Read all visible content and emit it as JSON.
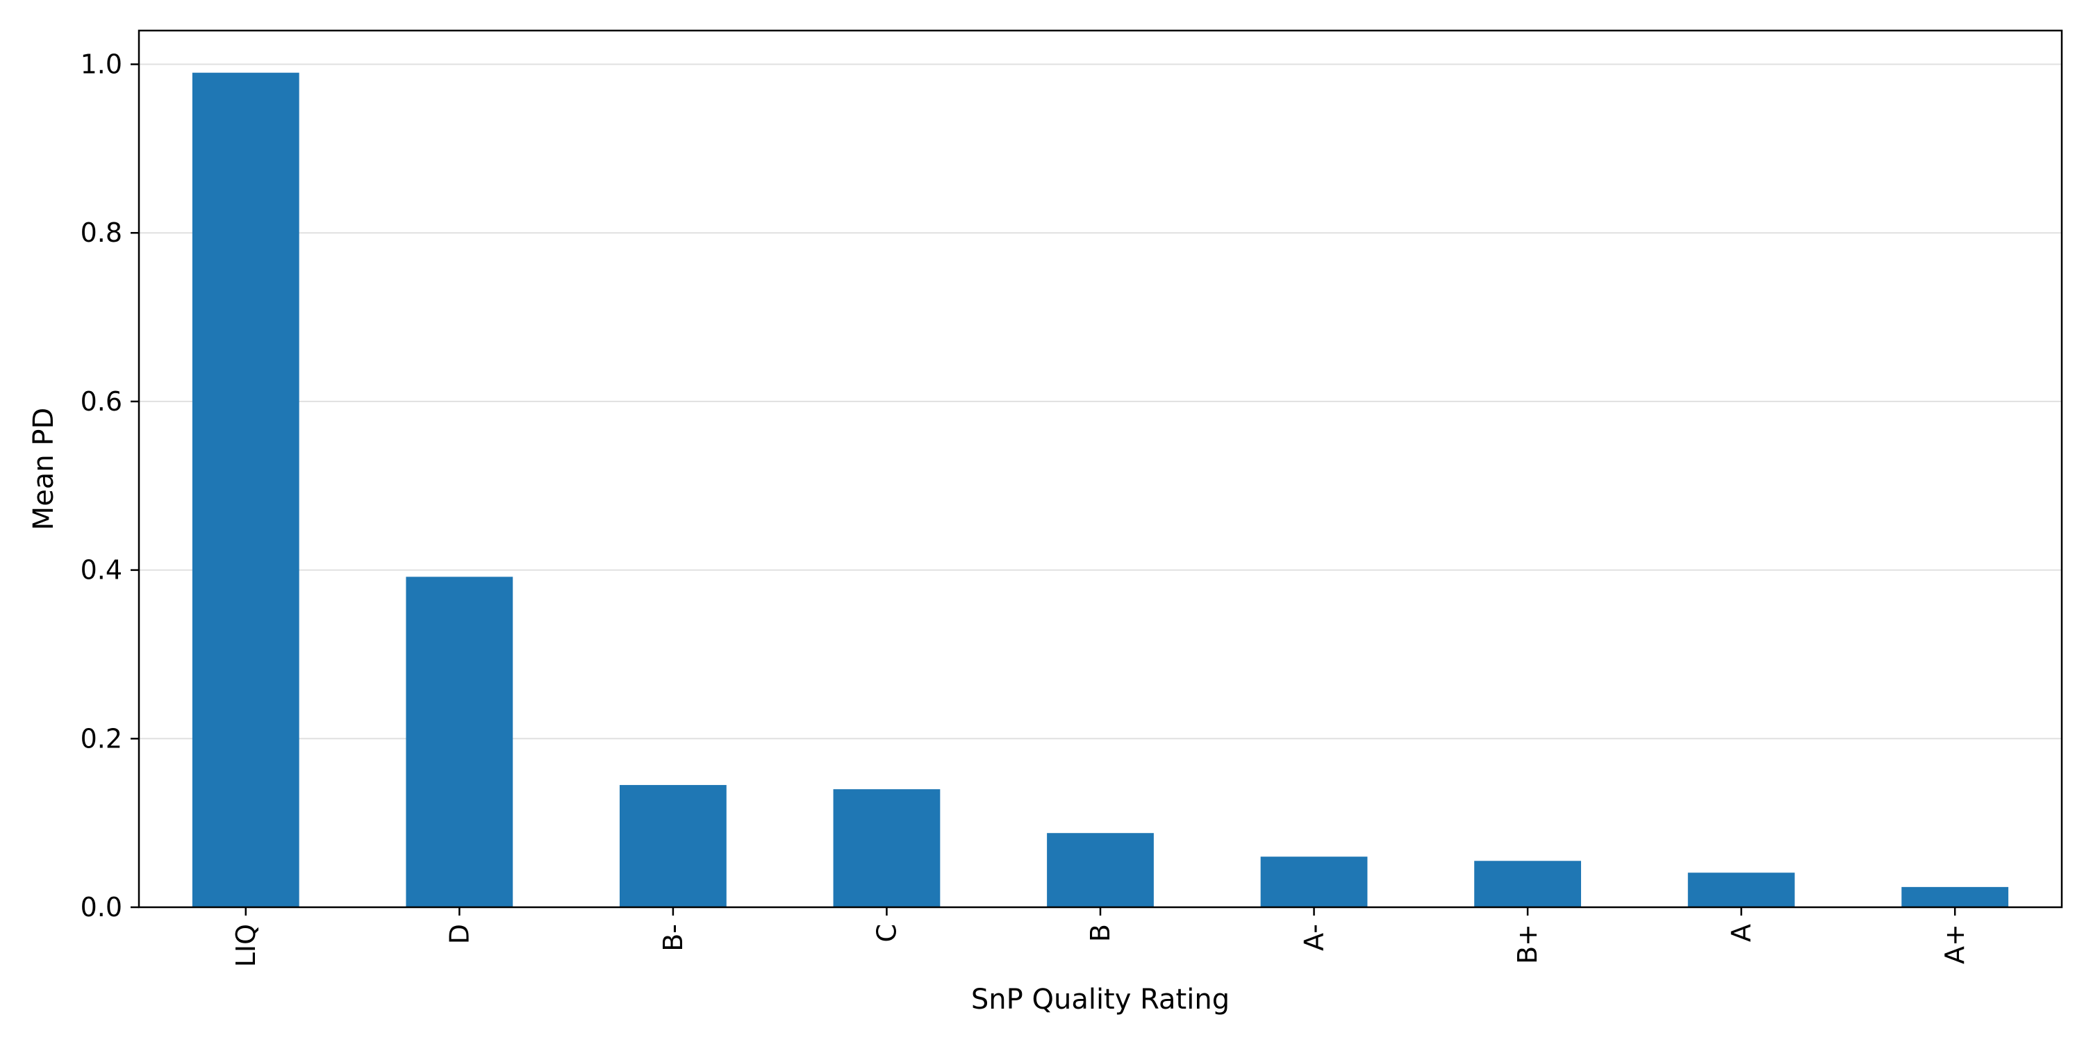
{
  "chart_data": {
    "type": "bar",
    "title": "",
    "xlabel": "SnP Quality Rating",
    "ylabel": "Mean PD",
    "categories": [
      "LIQ",
      "D",
      "B-",
      "C",
      "B",
      "A-",
      "B+",
      "A",
      "A+"
    ],
    "values": [
      0.99,
      0.392,
      0.145,
      0.14,
      0.088,
      0.06,
      0.055,
      0.041,
      0.024
    ],
    "ylim": [
      0,
      1.04
    ],
    "yticks": [
      "0.0",
      "0.2",
      "0.4",
      "0.6",
      "0.8",
      "1.0"
    ],
    "ytick_values": [
      0,
      0.2,
      0.4,
      0.6,
      0.8,
      1.0
    ],
    "grid": "horizontal",
    "legend": "none",
    "bar_color": "#1f77b4",
    "grid_color": "#e0e0e0"
  }
}
